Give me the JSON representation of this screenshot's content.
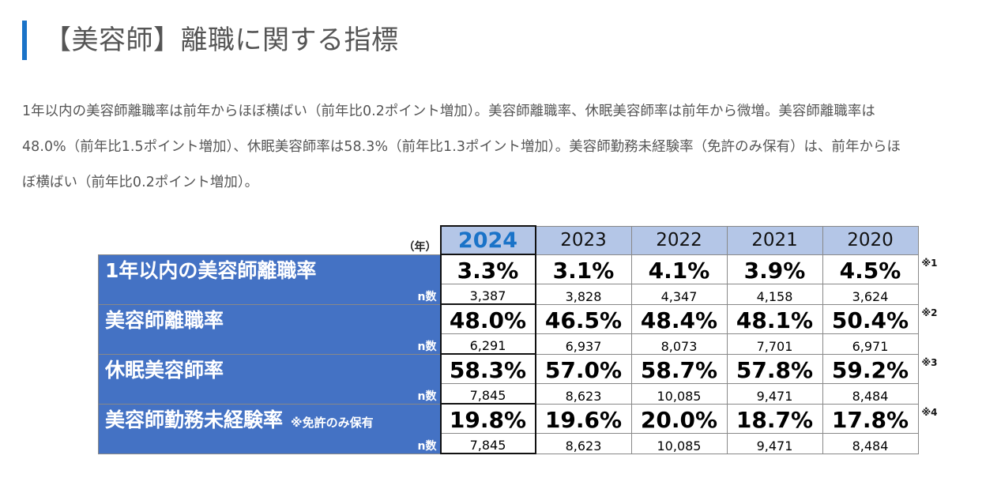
{
  "heading": "【美容師】離職に関する指標",
  "intro": [
    "1年以内の美容師離職率は前年からほぼ横ばい（前年比0.2ポイント増加）。美容師離職率、休眠美容師率は前年から微増。美容師離職率は",
    "48.0%（前年比1.5ポイント増加）、休眠美容師率は58.3%（前年比1.3ポイント増加）。美容師勤務未経験率（免許のみ保有）は、前年からほ",
    "ぼ横ばい（前年比0.2ポイント増加）。"
  ],
  "table": {
    "year_unit": "（年）",
    "years": [
      "2024",
      "2023",
      "2022",
      "2021",
      "2020"
    ],
    "n_label": "n数",
    "rows": [
      {
        "label": "1年以内の美容師離職率",
        "sub": "",
        "values": [
          "3.3%",
          "3.1%",
          "4.1%",
          "3.9%",
          "4.5%"
        ],
        "counts": [
          "3,387",
          "3,828",
          "4,347",
          "4,158",
          "3,624"
        ],
        "note": "※1"
      },
      {
        "label": "美容師離職率",
        "sub": "",
        "values": [
          "48.0%",
          "46.5%",
          "48.4%",
          "48.1%",
          "50.4%"
        ],
        "counts": [
          "6,291",
          "6,937",
          "8,073",
          "7,701",
          "6,971"
        ],
        "note": "※2"
      },
      {
        "label": "休眠美容師率",
        "sub": "",
        "values": [
          "58.3%",
          "57.0%",
          "58.7%",
          "57.8%",
          "59.2%"
        ],
        "counts": [
          "7,845",
          "8,623",
          "10,085",
          "9,471",
          "8,484"
        ],
        "note": "※3"
      },
      {
        "label": "美容師勤務未経験率",
        "sub": "※免許のみ保有",
        "values": [
          "19.8%",
          "19.6%",
          "20.0%",
          "18.7%",
          "17.8%"
        ],
        "counts": [
          "7,845",
          "8,623",
          "10,085",
          "9,471",
          "8,484"
        ],
        "note": "※4"
      }
    ]
  },
  "colors": {
    "accent": "#1a73c8",
    "label_bg": "#4472c4",
    "year_bg": "#b4c6e7"
  }
}
